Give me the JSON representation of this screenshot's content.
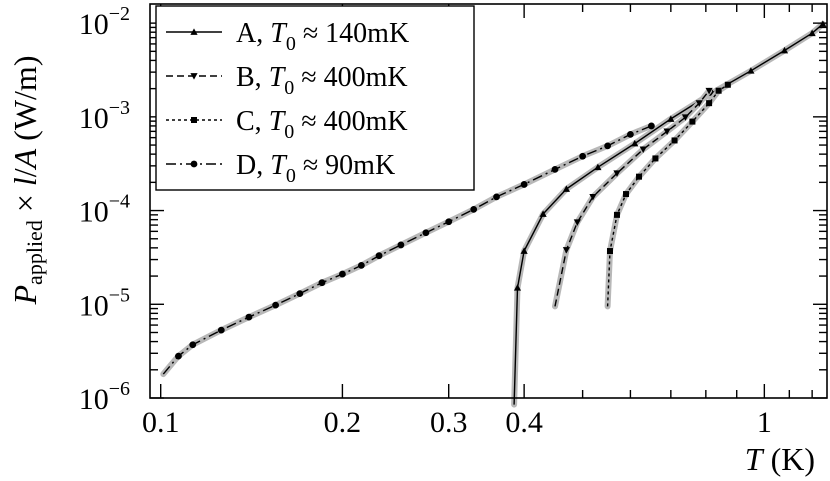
{
  "chart_data": {
    "type": "line",
    "xlabel": "T (K)",
    "ylabel": "P_applied × l/A (W/m)",
    "x_scale": "log",
    "y_scale": "log",
    "xlim": [
      0.096,
      1.27
    ],
    "ylim": [
      1e-06,
      0.016
    ],
    "x_tick_labels": [
      {
        "v": 0.1,
        "label": "0.1"
      },
      {
        "v": 0.2,
        "label": "0.2"
      },
      {
        "v": 0.3,
        "label": "0.3"
      },
      {
        "v": 0.4,
        "label": "0.4"
      },
      {
        "v": 1.0,
        "label": "1"
      }
    ],
    "y_tick_labels": [
      {
        "v": 1e-06,
        "base": "10",
        "exp": "−6"
      },
      {
        "v": 1e-05,
        "base": "10",
        "exp": "−5"
      },
      {
        "v": 0.0001,
        "base": "10",
        "exp": "−4"
      },
      {
        "v": 0.001,
        "base": "10",
        "exp": "−3"
      },
      {
        "v": 0.01,
        "base": "10",
        "exp": "−2"
      }
    ],
    "legend_position": "top-left",
    "series": [
      {
        "label": "A",
        "t0": "140mK",
        "marker": "triangle-up",
        "dash": "solid",
        "points": [
          [
            0.385,
            8.5e-07
          ],
          [
            0.39,
            1.5e-05
          ],
          [
            0.4,
            3.7e-05
          ],
          [
            0.43,
            9.2e-05
          ],
          [
            0.47,
            0.00017
          ],
          [
            0.53,
            0.00029
          ],
          [
            0.61,
            0.00052
          ],
          [
            0.7,
            0.00095
          ],
          [
            0.82,
            0.0018
          ],
          [
            0.95,
            0.0031
          ],
          [
            1.08,
            0.0051
          ],
          [
            1.2,
            0.0078
          ],
          [
            1.25,
            0.0098
          ]
        ]
      },
      {
        "label": "B",
        "t0": "400mK",
        "marker": "triangle-down",
        "dash": "dashed",
        "points": [
          [
            0.45,
            9.5e-06
          ],
          [
            0.47,
            3.8e-05
          ],
          [
            0.49,
            7.5e-05
          ],
          [
            0.52,
            0.00014
          ],
          [
            0.57,
            0.00025
          ],
          [
            0.63,
            0.00045
          ],
          [
            0.69,
            0.0007
          ],
          [
            0.74,
            0.00099
          ],
          [
            0.78,
            0.0014
          ],
          [
            0.81,
            0.0019
          ]
        ]
      },
      {
        "label": "C",
        "t0": "400mK",
        "marker": "square",
        "dash": "dotted",
        "points": [
          [
            0.55,
            9.5e-06
          ],
          [
            0.555,
            3.7e-05
          ],
          [
            0.57,
            9e-05
          ],
          [
            0.59,
            0.00015
          ],
          [
            0.62,
            0.00023
          ],
          [
            0.66,
            0.00036
          ],
          [
            0.71,
            0.00056
          ],
          [
            0.76,
            0.00089
          ],
          [
            0.81,
            0.0014
          ],
          [
            0.84,
            0.0019
          ],
          [
            0.87,
            0.0022
          ]
        ]
      },
      {
        "label": "D",
        "t0": "90mK",
        "marker": "circle",
        "dash": "dash-dot",
        "points": [
          [
            0.101,
            1.8e-06
          ],
          [
            0.107,
            2.8e-06
          ],
          [
            0.113,
            3.7e-06
          ],
          [
            0.126,
            5.3e-06
          ],
          [
            0.14,
            7.3e-06
          ],
          [
            0.155,
            9.8e-06
          ],
          [
            0.17,
            1.3e-05
          ],
          [
            0.185,
            1.7e-05
          ],
          [
            0.2,
            2.1e-05
          ],
          [
            0.215,
            2.6e-05
          ],
          [
            0.23,
            3.3e-05
          ],
          [
            0.25,
            4.3e-05
          ],
          [
            0.275,
            5.8e-05
          ],
          [
            0.3,
            7.6e-05
          ],
          [
            0.33,
            0.000103
          ],
          [
            0.36,
            0.00014
          ],
          [
            0.4,
            0.00019
          ],
          [
            0.45,
            0.000275
          ],
          [
            0.5,
            0.00038
          ],
          [
            0.55,
            0.00049
          ],
          [
            0.6,
            0.00065
          ],
          [
            0.65,
            0.0008
          ]
        ]
      }
    ]
  }
}
